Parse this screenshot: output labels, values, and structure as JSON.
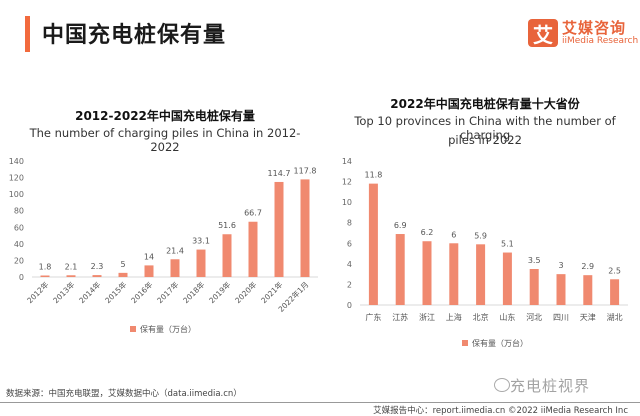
{
  "header": {
    "title": "中国充电桩保有量",
    "brand_logo_char": "艾",
    "brand_cn": "艾媒咨询",
    "brand_en": "iiMedia Research"
  },
  "colors": {
    "accent": "#f26a3d",
    "bar": "#f0896f",
    "brand": "#e8643b"
  },
  "chart_data": [
    {
      "type": "bar",
      "title": "2012-2022年中国充电桩保有量",
      "subtitle": "The number of charging piles in China in 2012-2022",
      "categories": [
        "2012年",
        "2013年",
        "2014年",
        "2015年",
        "2016年",
        "2017年",
        "2018年",
        "2019年",
        "2020年",
        "2021年",
        "2022年1月"
      ],
      "series": [
        {
          "name": "保有量（万台）",
          "values": [
            1.8,
            2.1,
            2.3,
            5,
            14,
            21.4,
            33.1,
            51.6,
            66.7,
            114.7,
            117.8
          ]
        }
      ],
      "yticks": [
        0,
        20,
        40,
        60,
        80,
        100,
        120,
        140
      ],
      "ylim": [
        0,
        140
      ],
      "xlabel": "",
      "ylabel": "",
      "grid": false,
      "legend": "bottom"
    },
    {
      "type": "bar",
      "title": "2022年中国充电桩保有量十大省份",
      "subtitle_line1": "Top 10 provinces in China with the number of charging",
      "subtitle_line2": "piles in 2022",
      "categories": [
        "广东",
        "江苏",
        "浙江",
        "上海",
        "北京",
        "山东",
        "河北",
        "四川",
        "天津",
        "湖北"
      ],
      "series": [
        {
          "name": "保有量（万台）",
          "values": [
            11.8,
            6.9,
            6.2,
            6,
            5.9,
            5.1,
            3.5,
            3,
            2.9,
            2.5
          ]
        }
      ],
      "yticks": [
        0,
        2,
        4,
        6,
        8,
        10,
        12,
        14
      ],
      "ylim": [
        0,
        14
      ],
      "xlabel": "",
      "ylabel": "",
      "grid": false,
      "legend": "bottom"
    }
  ],
  "footer": {
    "source": "数据来源：中国充电联盟，艾媒数据中心（data.iimedia.cn）",
    "report_center": "艾媒报告中心：report.iimedia.cn    ©2022  iiMedia Research  Inc",
    "watermark": "充电桩视界"
  }
}
